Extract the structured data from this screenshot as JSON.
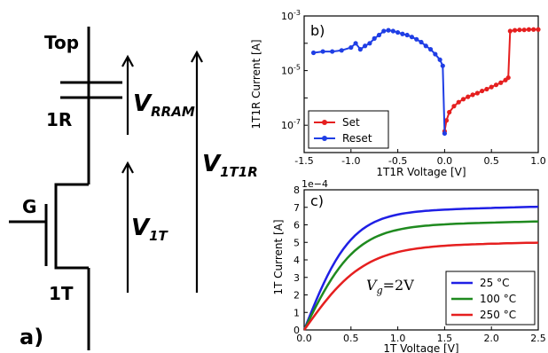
{
  "circuit": {
    "panel_label": "a)",
    "top_label": "Top",
    "rram_label": "1R",
    "gate_label": "G",
    "transistor_label": "1T",
    "v_rram": {
      "main": "V",
      "sub": "RRAM"
    },
    "v_1t": {
      "main": "V",
      "sub": "1T"
    },
    "v_1t1r": {
      "main": "V",
      "sub": "1T1R"
    }
  },
  "chart_data": [
    {
      "type": "line",
      "panel_label": "b)",
      "xlabel": "1T1R Voltage [V]",
      "ylabel": "1T1R Current [A]",
      "yscale": "log",
      "xlim": [
        -1.5,
        1.0
      ],
      "ylim": [
        1e-08,
        0.001
      ],
      "xticks": [
        "-1.5",
        "-1.0",
        "-0.5",
        "0.0",
        "0.5",
        "1.0"
      ],
      "yticks": [
        {
          "value": 0.001,
          "base": "10",
          "exp": "-3"
        },
        {
          "value": 1e-05,
          "base": "10",
          "exp": "-5"
        },
        {
          "value": 1e-07,
          "base": "10",
          "exp": "-7"
        }
      ],
      "legend_position": "bottom-left",
      "series": [
        {
          "name": "Set",
          "color": "#e51f1f",
          "marker": "circle",
          "x": [
            0.0,
            0.02,
            0.05,
            0.1,
            0.15,
            0.2,
            0.25,
            0.3,
            0.35,
            0.4,
            0.45,
            0.5,
            0.55,
            0.6,
            0.65,
            0.68,
            0.7,
            0.75,
            0.8,
            0.85,
            0.9,
            0.95,
            1.0
          ],
          "y": [
            6e-08,
            1.5e-07,
            3e-07,
            5e-07,
            7e-07,
            9e-07,
            1.1e-06,
            1.3e-06,
            1.5e-06,
            1.8e-06,
            2.1e-06,
            2.5e-06,
            3e-06,
            3.6e-06,
            4.5e-06,
            5.5e-06,
            0.00028,
            0.0003,
            0.00031,
            0.00031,
            0.00032,
            0.00032,
            0.00032
          ]
        },
        {
          "name": "Reset",
          "color": "#1f3ee5",
          "marker": "circle",
          "x": [
            -1.4,
            -1.3,
            -1.2,
            -1.1,
            -1.0,
            -0.95,
            -0.9,
            -0.85,
            -0.8,
            -0.75,
            -0.7,
            -0.65,
            -0.6,
            -0.55,
            -0.5,
            -0.45,
            -0.4,
            -0.35,
            -0.3,
            -0.25,
            -0.2,
            -0.15,
            -0.1,
            -0.05,
            -0.02,
            0.0
          ],
          "y": [
            4.5e-05,
            5e-05,
            5e-05,
            5.5e-05,
            7e-05,
            0.0001,
            6e-05,
            8e-05,
            0.0001,
            0.00015,
            0.0002,
            0.00028,
            0.0003,
            0.00028,
            0.00025,
            0.00022,
            0.0002,
            0.00017,
            0.00014,
            0.00011,
            8e-05,
            6e-05,
            4e-05,
            2.5e-05,
            1.5e-05,
            5e-08
          ]
        }
      ]
    },
    {
      "type": "line",
      "panel_label": "c)",
      "xlabel": "1T Voltage [V]",
      "ylabel": "1T Current [A]",
      "scale_note": "1e−4",
      "annotation": {
        "main": "V",
        "sub": "g",
        "rest": "=2V"
      },
      "xlim": [
        0.0,
        2.5
      ],
      "ylim": [
        0,
        8
      ],
      "xticks": [
        "0.0",
        "0.5",
        "1.0",
        "1.5",
        "2.0",
        "2.5"
      ],
      "yticks": [
        "0",
        "1",
        "2",
        "3",
        "4",
        "5",
        "6",
        "7",
        "8"
      ],
      "legend_position": "bottom-right",
      "series": [
        {
          "name": "25 °C",
          "color": "#1f1fe5",
          "isat": 6.7,
          "vsat": 0.55
        },
        {
          "name": "100 °C",
          "color": "#1f8a1f",
          "isat": 5.9,
          "vsat": 0.6
        },
        {
          "name": "250 °C",
          "color": "#e51f1f",
          "isat": 4.75,
          "vsat": 0.7
        }
      ]
    }
  ]
}
